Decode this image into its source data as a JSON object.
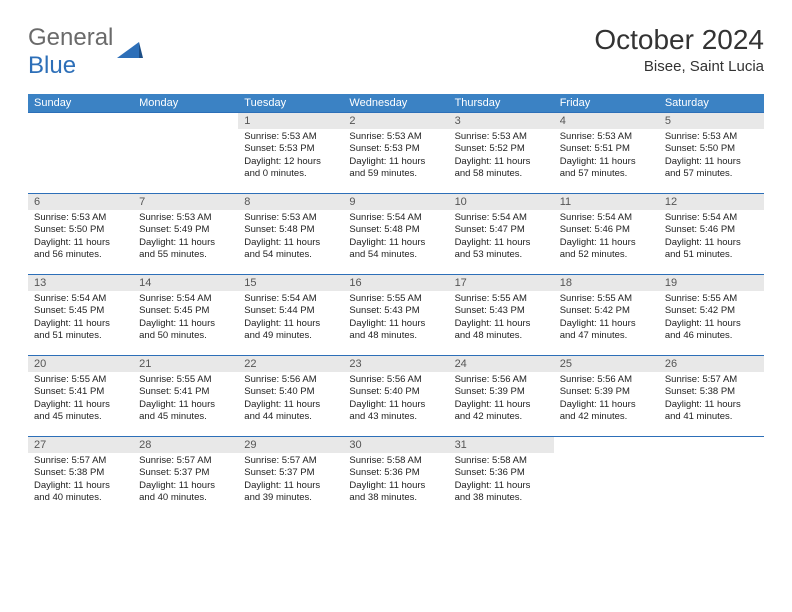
{
  "logo": {
    "text1": "General",
    "text2": "Blue"
  },
  "title": "October 2024",
  "location": "Bisee, Saint Lucia",
  "colors": {
    "header_bg": "#3b82c4",
    "header_text": "#ffffff",
    "daynum_bg": "#e8e8e8",
    "border": "#2d6fb8",
    "logo_gray": "#6a6a6a",
    "logo_blue": "#2d6fb8"
  },
  "day_headers": [
    "Sunday",
    "Monday",
    "Tuesday",
    "Wednesday",
    "Thursday",
    "Friday",
    "Saturday"
  ],
  "weeks": [
    [
      {
        "n": "",
        "empty": true
      },
      {
        "n": "",
        "empty": true
      },
      {
        "n": "1",
        "sr": "Sunrise: 5:53 AM",
        "ss": "Sunset: 5:53 PM",
        "dl": "Daylight: 12 hours and 0 minutes."
      },
      {
        "n": "2",
        "sr": "Sunrise: 5:53 AM",
        "ss": "Sunset: 5:53 PM",
        "dl": "Daylight: 11 hours and 59 minutes."
      },
      {
        "n": "3",
        "sr": "Sunrise: 5:53 AM",
        "ss": "Sunset: 5:52 PM",
        "dl": "Daylight: 11 hours and 58 minutes."
      },
      {
        "n": "4",
        "sr": "Sunrise: 5:53 AM",
        "ss": "Sunset: 5:51 PM",
        "dl": "Daylight: 11 hours and 57 minutes."
      },
      {
        "n": "5",
        "sr": "Sunrise: 5:53 AM",
        "ss": "Sunset: 5:50 PM",
        "dl": "Daylight: 11 hours and 57 minutes."
      }
    ],
    [
      {
        "n": "6",
        "sr": "Sunrise: 5:53 AM",
        "ss": "Sunset: 5:50 PM",
        "dl": "Daylight: 11 hours and 56 minutes."
      },
      {
        "n": "7",
        "sr": "Sunrise: 5:53 AM",
        "ss": "Sunset: 5:49 PM",
        "dl": "Daylight: 11 hours and 55 minutes."
      },
      {
        "n": "8",
        "sr": "Sunrise: 5:53 AM",
        "ss": "Sunset: 5:48 PM",
        "dl": "Daylight: 11 hours and 54 minutes."
      },
      {
        "n": "9",
        "sr": "Sunrise: 5:54 AM",
        "ss": "Sunset: 5:48 PM",
        "dl": "Daylight: 11 hours and 54 minutes."
      },
      {
        "n": "10",
        "sr": "Sunrise: 5:54 AM",
        "ss": "Sunset: 5:47 PM",
        "dl": "Daylight: 11 hours and 53 minutes."
      },
      {
        "n": "11",
        "sr": "Sunrise: 5:54 AM",
        "ss": "Sunset: 5:46 PM",
        "dl": "Daylight: 11 hours and 52 minutes."
      },
      {
        "n": "12",
        "sr": "Sunrise: 5:54 AM",
        "ss": "Sunset: 5:46 PM",
        "dl": "Daylight: 11 hours and 51 minutes."
      }
    ],
    [
      {
        "n": "13",
        "sr": "Sunrise: 5:54 AM",
        "ss": "Sunset: 5:45 PM",
        "dl": "Daylight: 11 hours and 51 minutes."
      },
      {
        "n": "14",
        "sr": "Sunrise: 5:54 AM",
        "ss": "Sunset: 5:45 PM",
        "dl": "Daylight: 11 hours and 50 minutes."
      },
      {
        "n": "15",
        "sr": "Sunrise: 5:54 AM",
        "ss": "Sunset: 5:44 PM",
        "dl": "Daylight: 11 hours and 49 minutes."
      },
      {
        "n": "16",
        "sr": "Sunrise: 5:55 AM",
        "ss": "Sunset: 5:43 PM",
        "dl": "Daylight: 11 hours and 48 minutes."
      },
      {
        "n": "17",
        "sr": "Sunrise: 5:55 AM",
        "ss": "Sunset: 5:43 PM",
        "dl": "Daylight: 11 hours and 48 minutes."
      },
      {
        "n": "18",
        "sr": "Sunrise: 5:55 AM",
        "ss": "Sunset: 5:42 PM",
        "dl": "Daylight: 11 hours and 47 minutes."
      },
      {
        "n": "19",
        "sr": "Sunrise: 5:55 AM",
        "ss": "Sunset: 5:42 PM",
        "dl": "Daylight: 11 hours and 46 minutes."
      }
    ],
    [
      {
        "n": "20",
        "sr": "Sunrise: 5:55 AM",
        "ss": "Sunset: 5:41 PM",
        "dl": "Daylight: 11 hours and 45 minutes."
      },
      {
        "n": "21",
        "sr": "Sunrise: 5:55 AM",
        "ss": "Sunset: 5:41 PM",
        "dl": "Daylight: 11 hours and 45 minutes."
      },
      {
        "n": "22",
        "sr": "Sunrise: 5:56 AM",
        "ss": "Sunset: 5:40 PM",
        "dl": "Daylight: 11 hours and 44 minutes."
      },
      {
        "n": "23",
        "sr": "Sunrise: 5:56 AM",
        "ss": "Sunset: 5:40 PM",
        "dl": "Daylight: 11 hours and 43 minutes."
      },
      {
        "n": "24",
        "sr": "Sunrise: 5:56 AM",
        "ss": "Sunset: 5:39 PM",
        "dl": "Daylight: 11 hours and 42 minutes."
      },
      {
        "n": "25",
        "sr": "Sunrise: 5:56 AM",
        "ss": "Sunset: 5:39 PM",
        "dl": "Daylight: 11 hours and 42 minutes."
      },
      {
        "n": "26",
        "sr": "Sunrise: 5:57 AM",
        "ss": "Sunset: 5:38 PM",
        "dl": "Daylight: 11 hours and 41 minutes."
      }
    ],
    [
      {
        "n": "27",
        "sr": "Sunrise: 5:57 AM",
        "ss": "Sunset: 5:38 PM",
        "dl": "Daylight: 11 hours and 40 minutes."
      },
      {
        "n": "28",
        "sr": "Sunrise: 5:57 AM",
        "ss": "Sunset: 5:37 PM",
        "dl": "Daylight: 11 hours and 40 minutes."
      },
      {
        "n": "29",
        "sr": "Sunrise: 5:57 AM",
        "ss": "Sunset: 5:37 PM",
        "dl": "Daylight: 11 hours and 39 minutes."
      },
      {
        "n": "30",
        "sr": "Sunrise: 5:58 AM",
        "ss": "Sunset: 5:36 PM",
        "dl": "Daylight: 11 hours and 38 minutes."
      },
      {
        "n": "31",
        "sr": "Sunrise: 5:58 AM",
        "ss": "Sunset: 5:36 PM",
        "dl": "Daylight: 11 hours and 38 minutes."
      },
      {
        "n": "",
        "empty": true
      },
      {
        "n": "",
        "empty": true
      }
    ]
  ]
}
